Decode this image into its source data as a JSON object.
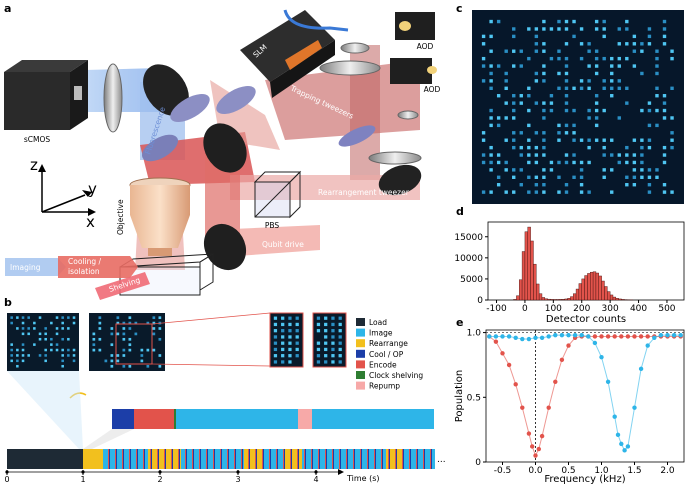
{
  "panels": {
    "a": {
      "label": "a",
      "labels": {
        "scmos": "sCMOS",
        "slm": "SLM",
        "aod_top": "AOD",
        "aod_mid": "AOD",
        "fluorescence": "Fluorescence",
        "trapping": "Trapping tweezers",
        "objective": "Objective",
        "pbs": "PBS",
        "rearrangement": "Rearrangement tweezer",
        "qubit_drive": "Qubit drive",
        "imaging": "Imaging",
        "cooling_line1": "Cooling /",
        "cooling_line2": "isolation",
        "shelving": "Shelving"
      },
      "axes": {
        "z": "z",
        "y": "y",
        "x": "x"
      }
    },
    "b": {
      "label": "b",
      "legend": [
        {
          "name": "Load",
          "color": "#1e2a35"
        },
        {
          "name": "Image",
          "color": "#2eb5e8"
        },
        {
          "name": "Rearrange",
          "color": "#f2c01e"
        },
        {
          "name": "Cool / OP",
          "color": "#1c3ea8"
        },
        {
          "name": "Encode",
          "color": "#e2534b"
        },
        {
          "name": "Clock shelving",
          "color": "#2e7d32"
        },
        {
          "name": "Repump",
          "color": "#f7a9a8"
        }
      ],
      "time_ticks": [
        "0",
        "1",
        "2",
        "3",
        "4"
      ],
      "time_label": "Time (s)",
      "ellipsis": "..."
    },
    "c": {
      "label": "c"
    },
    "d": {
      "label": "d"
    },
    "e": {
      "label": "e"
    }
  },
  "chart_data": [
    {
      "panel": "d",
      "type": "bar",
      "title": "",
      "xlabel": "Detector counts",
      "ylabel": "",
      "xlim": [
        -130,
        560
      ],
      "ylim": [
        0,
        18500
      ],
      "xticks": [
        "-100",
        "0",
        "100",
        "200",
        "300",
        "400",
        "500"
      ],
      "yticks": [
        "0",
        "5000",
        "10000",
        "15000"
      ],
      "bin_width": 10,
      "bin_starts": [
        -40,
        -30,
        -20,
        -10,
        0,
        10,
        20,
        30,
        40,
        50,
        60,
        70,
        80,
        90,
        100,
        110,
        120,
        130,
        140,
        150,
        160,
        170,
        180,
        190,
        200,
        210,
        220,
        230,
        240,
        250,
        260,
        270,
        280,
        290,
        300,
        310,
        320,
        330,
        340,
        350,
        360,
        370
      ],
      "values": [
        150,
        1000,
        4800,
        11500,
        16200,
        17300,
        14000,
        8500,
        3800,
        1500,
        600,
        300,
        200,
        150,
        130,
        130,
        150,
        180,
        250,
        400,
        800,
        1500,
        2600,
        3900,
        5000,
        5800,
        6300,
        6600,
        6700,
        6400,
        5700,
        4500,
        3200,
        2000,
        1200,
        700,
        400,
        250,
        150,
        90,
        50,
        30
      ],
      "color": "#e2534b"
    },
    {
      "panel": "e",
      "type": "line",
      "title": "",
      "xlabel": "Frequency (kHz)",
      "ylabel": "Population",
      "xlim": [
        -0.75,
        2.25
      ],
      "ylim": [
        0,
        1.02
      ],
      "xticks": [
        "-0.5",
        "0.0",
        "0.5",
        "1.0",
        "1.5",
        "2.0"
      ],
      "yticks": [
        "0",
        "0.5",
        "1.0"
      ],
      "series": [
        {
          "color": "#e2534b",
          "x": [
            -0.7,
            -0.6,
            -0.5,
            -0.4,
            -0.3,
            -0.2,
            -0.1,
            -0.05,
            0.0,
            0.05,
            0.1,
            0.2,
            0.3,
            0.4,
            0.5,
            0.6,
            0.7,
            0.8,
            0.9,
            1.0,
            1.1,
            1.2,
            1.3,
            1.4,
            1.5,
            1.6,
            1.7,
            1.8,
            1.9,
            2.0,
            2.1,
            2.2
          ],
          "y": [
            0.97,
            0.93,
            0.84,
            0.75,
            0.6,
            0.42,
            0.22,
            0.12,
            0.05,
            0.1,
            0.2,
            0.42,
            0.62,
            0.79,
            0.9,
            0.96,
            0.97,
            0.97,
            0.97,
            0.97,
            0.97,
            0.97,
            0.97,
            0.97,
            0.97,
            0.97,
            0.97,
            0.97,
            0.97,
            0.97,
            0.97,
            0.97
          ]
        },
        {
          "color": "#2eb5e8",
          "x": [
            -0.7,
            -0.6,
            -0.5,
            -0.4,
            -0.3,
            -0.2,
            -0.1,
            0.0,
            0.1,
            0.2,
            0.3,
            0.4,
            0.5,
            0.6,
            0.7,
            0.8,
            0.9,
            1.0,
            1.1,
            1.2,
            1.25,
            1.3,
            1.35,
            1.4,
            1.5,
            1.6,
            1.7,
            1.8,
            1.9,
            2.0,
            2.1,
            2.2
          ],
          "y": [
            0.97,
            0.97,
            0.97,
            0.97,
            0.96,
            0.95,
            0.95,
            0.96,
            0.96,
            0.97,
            0.98,
            0.98,
            0.98,
            0.98,
            0.98,
            0.97,
            0.92,
            0.81,
            0.62,
            0.35,
            0.21,
            0.14,
            0.09,
            0.12,
            0.42,
            0.72,
            0.9,
            0.96,
            0.98,
            0.98,
            0.98,
            0.98
          ]
        }
      ],
      "vline_x": 0.0
    }
  ]
}
